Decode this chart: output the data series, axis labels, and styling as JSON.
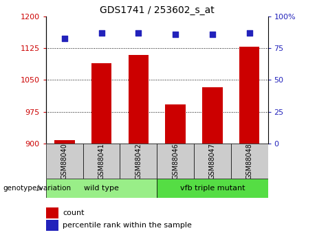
{
  "title": "GDS1741 / 253602_s_at",
  "samples": [
    "GSM88040",
    "GSM88041",
    "GSM88042",
    "GSM88046",
    "GSM88047",
    "GSM88048"
  ],
  "counts": [
    908,
    1090,
    1110,
    993,
    1033,
    1128
  ],
  "percentile_ranks": [
    83,
    87,
    87,
    86,
    86,
    87
  ],
  "ylim_left": [
    900,
    1200
  ],
  "ylim_right": [
    0,
    100
  ],
  "yticks_left": [
    900,
    975,
    1050,
    1125,
    1200
  ],
  "yticks_right": [
    0,
    25,
    50,
    75,
    100
  ],
  "bar_color": "#cc0000",
  "dot_color": "#2222bb",
  "groups": [
    {
      "label": "wild type",
      "n": 3,
      "color": "#99ee88"
    },
    {
      "label": "vfb triple mutant",
      "n": 3,
      "color": "#55dd44"
    }
  ],
  "legend_count_color": "#cc0000",
  "legend_dot_color": "#2222bb",
  "genotype_label": "genotype/variation",
  "legend_count_label": "count",
  "legend_percentile_label": "percentile rank within the sample"
}
